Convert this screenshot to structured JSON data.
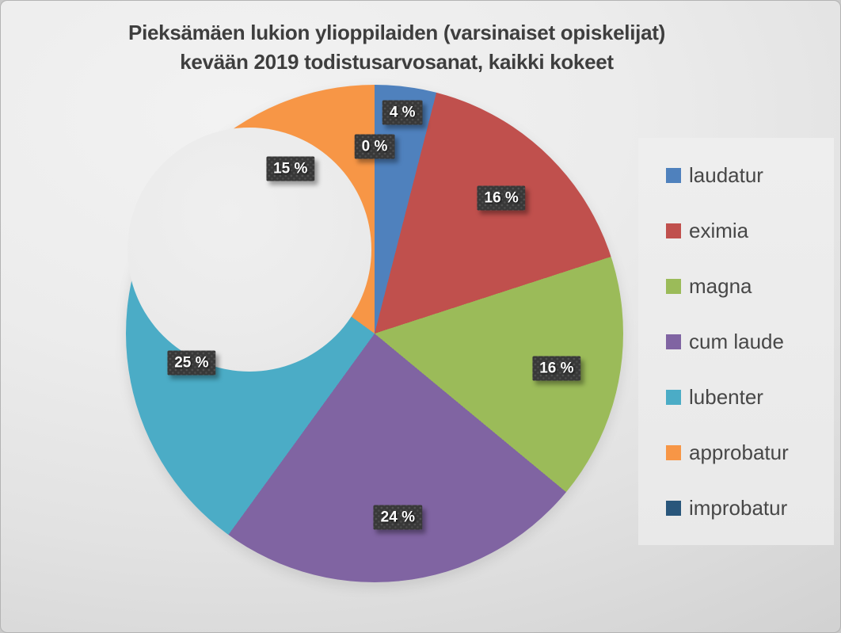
{
  "title": {
    "line1": "Pieksämäen lukion ylioppilaiden (varsinaiset opiskelijat)",
    "line2": "kevään 2019 todistusarvosanat, kaikki kokeet"
  },
  "chart_data": {
    "type": "pie",
    "subtype": "donut",
    "title": "Pieksämäen lukion ylioppilaiden (varsinaiset opiskelijat) kevään 2019 todistusarvosanat, kaikki kokeet",
    "unit": "%",
    "legend_position": "right",
    "start_angle_deg": 0,
    "direction": "clockwise",
    "series": [
      {
        "name": "laudatur",
        "value": 4,
        "label": "4 %",
        "color": "#4f81bd"
      },
      {
        "name": "eximia",
        "value": 16,
        "label": "16 %",
        "color": "#c0504d"
      },
      {
        "name": "magna",
        "value": 16,
        "label": "16 %",
        "color": "#9bbb59"
      },
      {
        "name": "cum laude",
        "value": 24,
        "label": "24 %",
        "color": "#8064a2"
      },
      {
        "name": "lubenter",
        "value": 25,
        "label": "25 %",
        "color": "#4bacc6"
      },
      {
        "name": "approbatur",
        "value": 15,
        "label": "15 %",
        "color": "#f79646"
      },
      {
        "name": "improbatur",
        "value": 0,
        "label": "0 %",
        "color": "#29567b"
      }
    ]
  }
}
